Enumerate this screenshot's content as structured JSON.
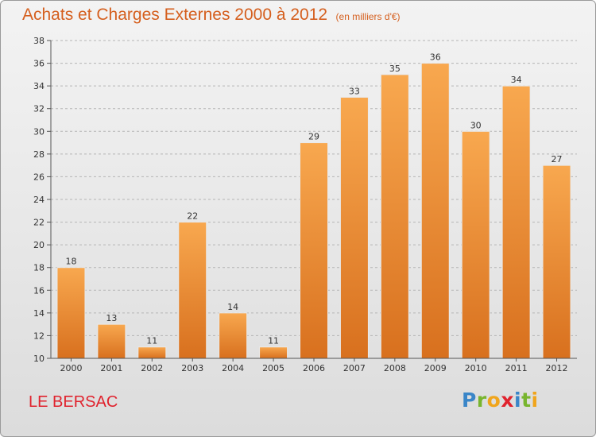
{
  "title": {
    "main": "Achats et Charges Externes 2000 à 2012",
    "unit": "(en milliers d'€)"
  },
  "commune": "LE BERSAC",
  "logo": {
    "letters": [
      "P",
      "r",
      "o",
      "x",
      "i",
      "t",
      "i"
    ],
    "colors": [
      "#3a86c8",
      "#78b52e",
      "#f0a51c",
      "#e0232e",
      "#3a86c8",
      "#78b52e",
      "#f0a51c"
    ]
  },
  "colors": {
    "title": "#d55f1e",
    "bar_top": "#f8a84f",
    "bar_bottom": "#d8701e",
    "commune": "#e0232e"
  },
  "chart_data": {
    "type": "bar",
    "title": "Achats et Charges Externes 2000 à 2012",
    "categories": [
      "2000",
      "2001",
      "2002",
      "2003",
      "2004",
      "2005",
      "2006",
      "2007",
      "2008",
      "2009",
      "2010",
      "2011",
      "2012"
    ],
    "values": [
      18,
      13,
      11,
      22,
      14,
      11,
      29,
      33,
      35,
      36,
      30,
      34,
      27
    ],
    "ylim": [
      10,
      38
    ],
    "yticks": [
      10,
      12,
      14,
      16,
      18,
      20,
      22,
      24,
      26,
      28,
      30,
      32,
      34,
      36,
      38
    ],
    "grid": "horizontal dashed",
    "data_labels": true
  }
}
